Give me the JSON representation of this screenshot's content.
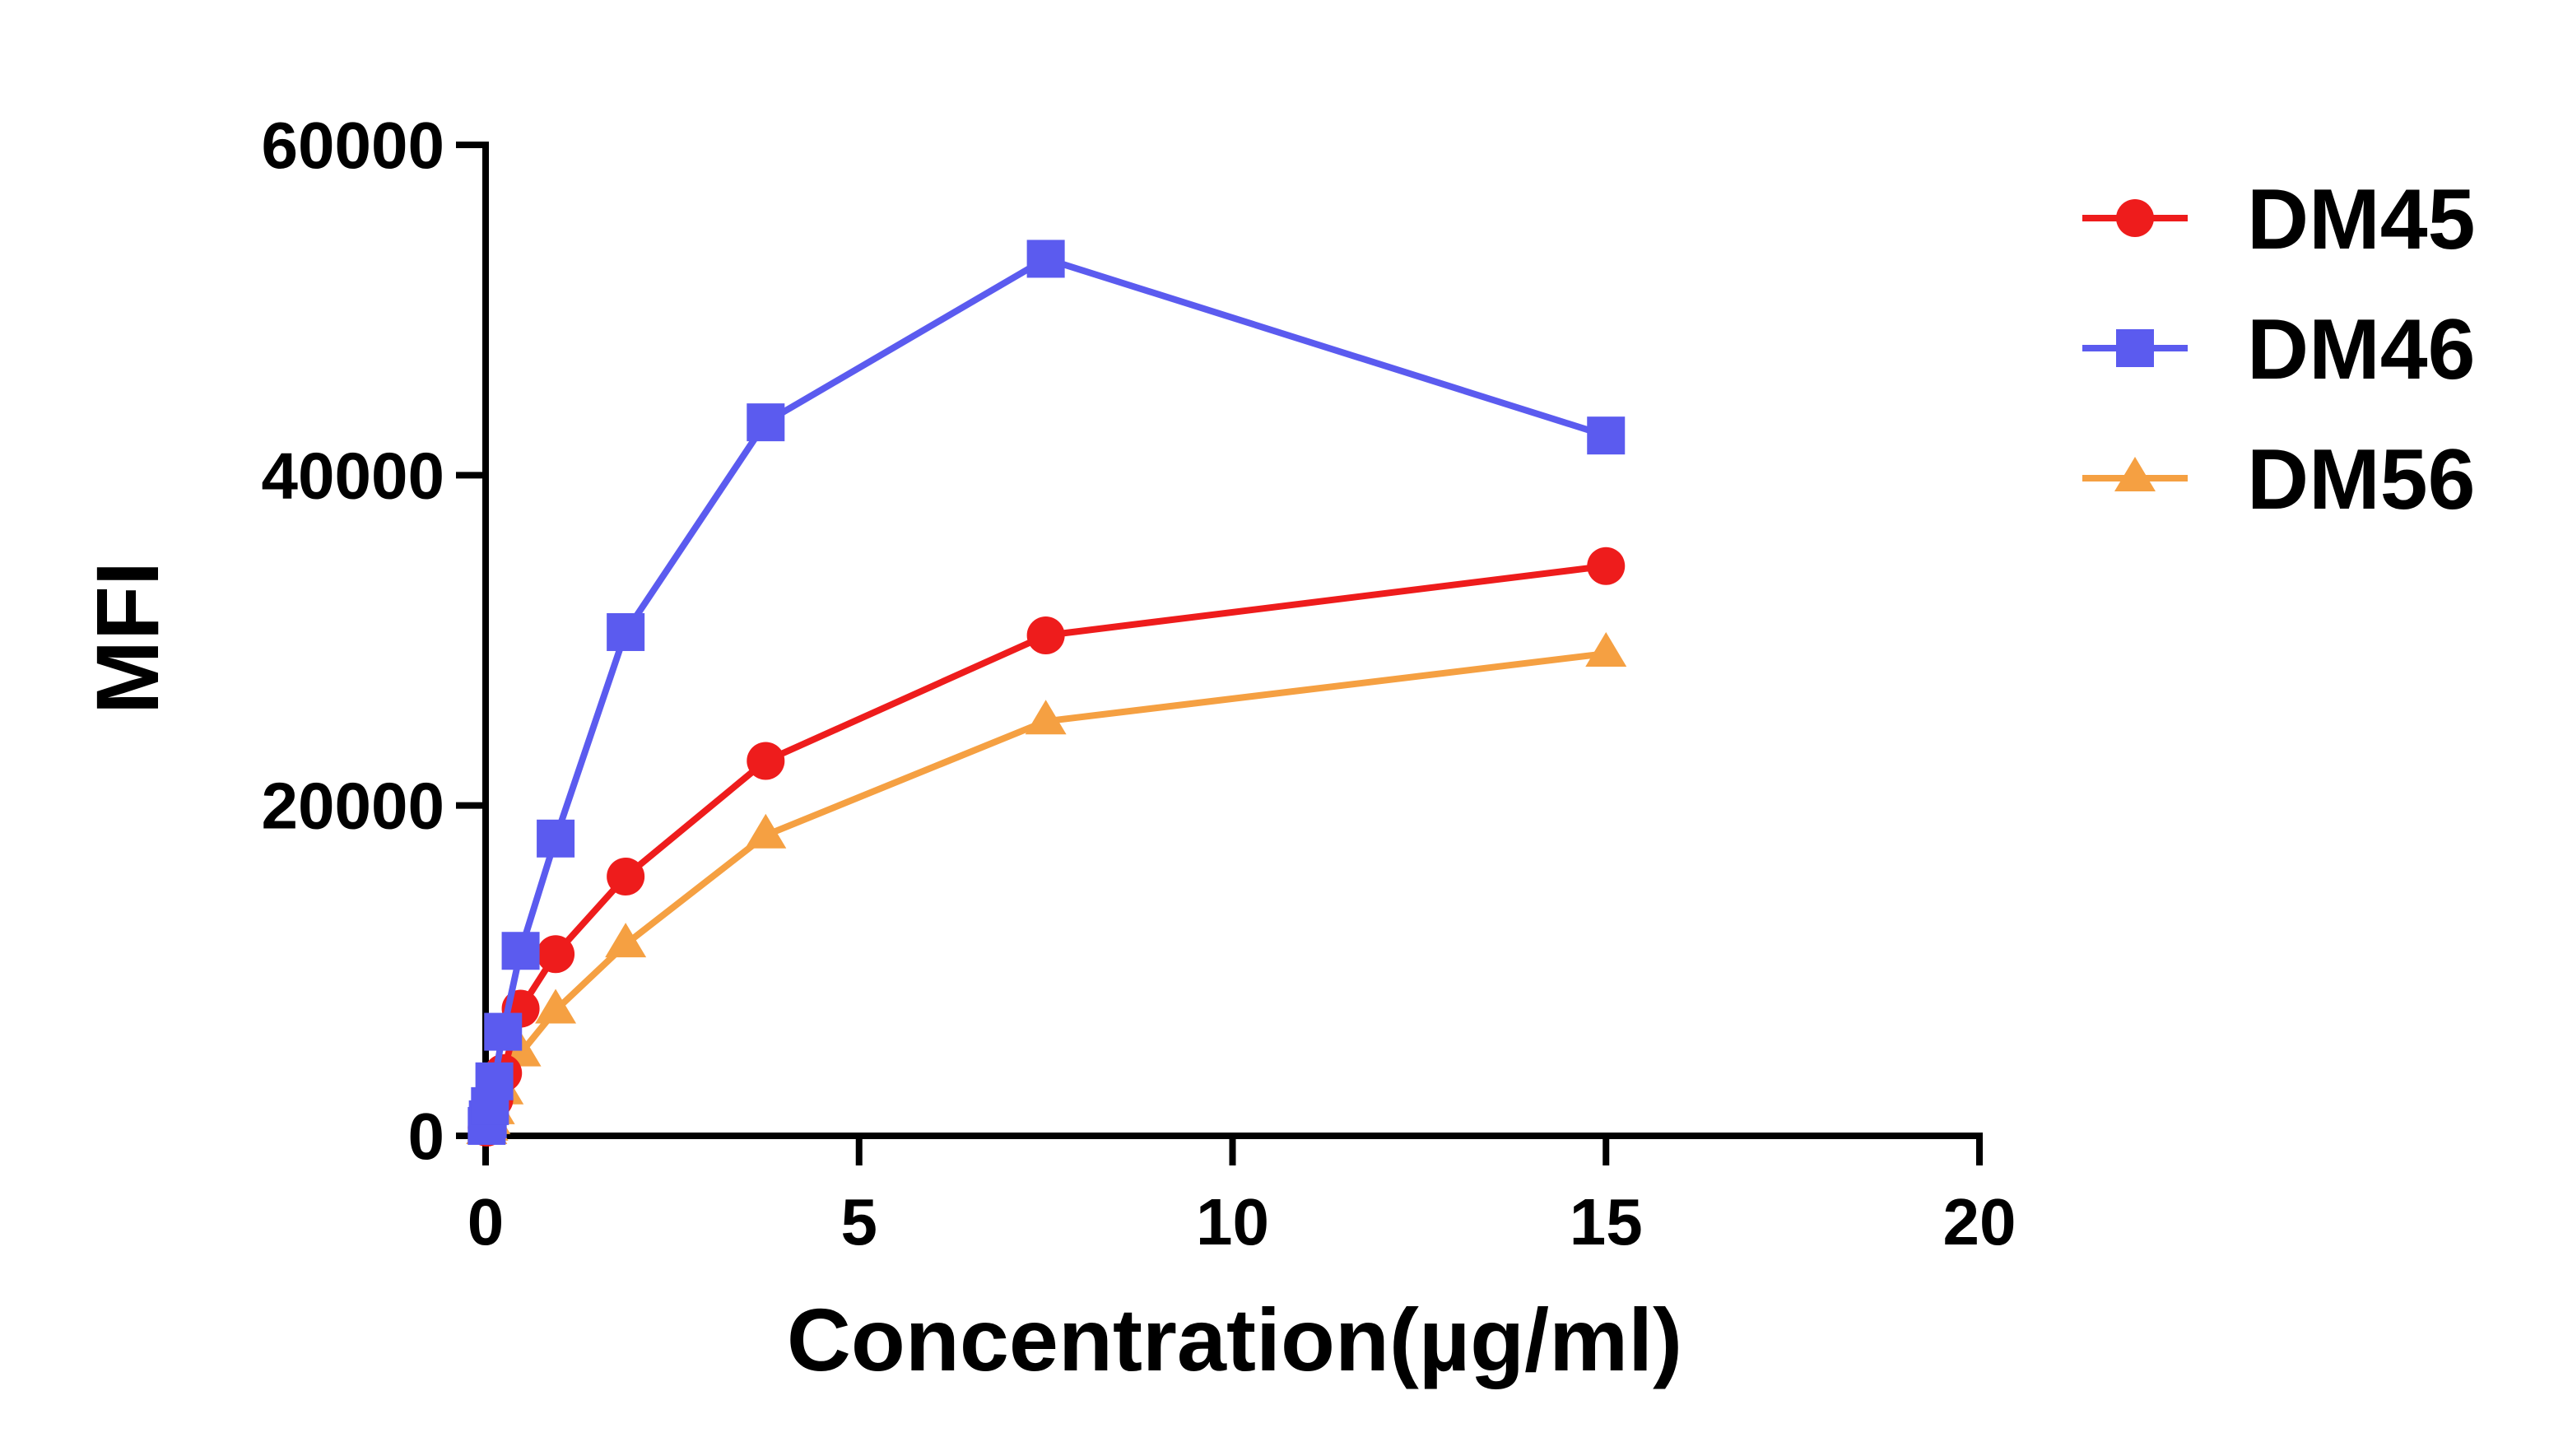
{
  "chart_data": {
    "type": "line",
    "title": "",
    "xlabel": "Concentration(µg/ml)",
    "ylabel": "MFI",
    "xlim": [
      0,
      20
    ],
    "ylim": [
      0,
      60000
    ],
    "x_ticks": [
      0,
      5,
      10,
      15,
      20
    ],
    "y_ticks": [
      0,
      20000,
      40000,
      60000
    ],
    "x_tick_labels": [
      "0",
      "5",
      "10",
      "15",
      "20"
    ],
    "y_tick_labels": [
      "0",
      "20000",
      "40000",
      "60000"
    ],
    "grid": false,
    "legend_position": "top-right",
    "x": [
      0.0146,
      0.0293,
      0.0586,
      0.117,
      0.234,
      0.469,
      0.9375,
      1.875,
      3.75,
      7.5,
      15
    ],
    "series": [
      {
        "name": "DM45",
        "color": "#ee1c1c",
        "marker": "circle",
        "values": [
          500,
          800,
          1300,
          2200,
          3800,
          7700,
          11000,
          15700,
          22700,
          30300,
          34500
        ]
      },
      {
        "name": "DM46",
        "color": "#5b5bef",
        "marker": "square",
        "values": [
          600,
          1000,
          1800,
          3300,
          6300,
          11200,
          18000,
          30500,
          43200,
          53100,
          42400
        ]
      },
      {
        "name": "DM56",
        "color": "#f5a042",
        "marker": "triangle",
        "values": [
          300,
          500,
          900,
          1500,
          2700,
          5000,
          7600,
          11600,
          18200,
          25100,
          29200
        ]
      }
    ]
  }
}
